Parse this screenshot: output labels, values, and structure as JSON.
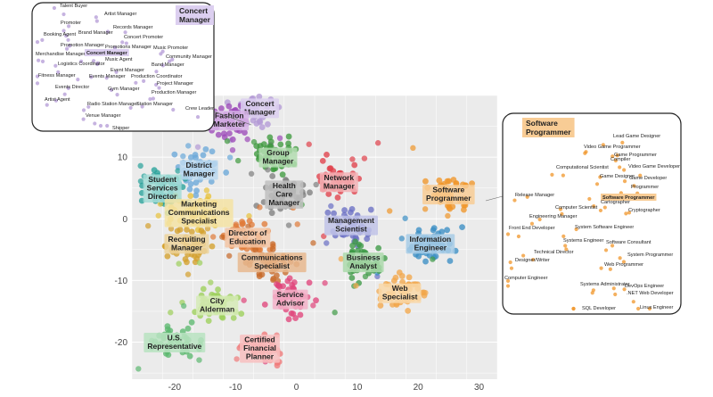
{
  "chart_data": {
    "type": "scatter",
    "title": "",
    "xlabel": "",
    "ylabel": "",
    "xlim": [
      -27,
      33
    ],
    "ylim": [
      -26,
      20
    ],
    "xticks": [
      -20,
      -10,
      0,
      10,
      20,
      30
    ],
    "yticks": [
      -20,
      -10,
      0,
      10
    ],
    "grid": true,
    "clusters": [
      {
        "name": "Concert\nManager",
        "x": -6,
        "y": 18,
        "color": "#b39ad6",
        "label_bg": "#dccff0"
      },
      {
        "name": "Fashion\nMarketer",
        "x": -11,
        "y": 16,
        "color": "#9c4ab8",
        "label_bg": "#d7b4e6"
      },
      {
        "name": "District\nManager",
        "x": -16,
        "y": 8,
        "color": "#6aa8d8",
        "label_bg": "#bcd8ee"
      },
      {
        "name": "Group\nManager",
        "x": -3,
        "y": 10,
        "color": "#3f9a3f",
        "label_bg": "#b3dcb0"
      },
      {
        "name": "Student\nServices\nDirector",
        "x": -22,
        "y": 5,
        "color": "#26a19a",
        "label_bg": "#a5dcd6"
      },
      {
        "name": "Health\nCare\nManager",
        "x": -2,
        "y": 4,
        "color": "#7f7f7f",
        "label_bg": "#bfbfbf"
      },
      {
        "name": "Network\nManager",
        "x": 7,
        "y": 6,
        "color": "#e0404a",
        "label_bg": "#f3b3b6"
      },
      {
        "name": "Software\nProgrammer",
        "x": 25,
        "y": 4,
        "color": "#f0962a",
        "label_bg": "#f8cc95"
      },
      {
        "name": "Marketing\nCommunications\nSpecialist",
        "x": -16,
        "y": 1,
        "color": "#e8c23a",
        "label_bg": "#f5e3a3"
      },
      {
        "name": "Management\nScientist",
        "x": 9,
        "y": -1,
        "color": "#6a6fc4",
        "label_bg": "#c1c3e8"
      },
      {
        "name": "Director of\nEducation",
        "x": -8,
        "y": -3,
        "color": "#e07b39",
        "label_bg": "#f3c6a4"
      },
      {
        "name": "Recruiting\nManager",
        "x": -18,
        "y": -4,
        "color": "#d4a02c",
        "label_bg": "#ecd39c"
      },
      {
        "name": "Communications\nSpecialist",
        "x": -4,
        "y": -7,
        "color": "#c86a2a",
        "label_bg": "#e8b98f"
      },
      {
        "name": "Information\nEngineer",
        "x": 22,
        "y": -4,
        "color": "#3b8ec4",
        "label_bg": "#a8cde6"
      },
      {
        "name": "Business\nAnalyst",
        "x": 11,
        "y": -7,
        "color": "#3e9a46",
        "label_bg": "#acd9ab"
      },
      {
        "name": "Web\nSpecialist",
        "x": 17,
        "y": -12,
        "color": "#f2a64a",
        "label_bg": "#f9d8a8"
      },
      {
        "name": "Service\nAdvisor",
        "x": -1,
        "y": -13,
        "color": "#e0457b",
        "label_bg": "#f3b3c9"
      },
      {
        "name": "City\nAlderman",
        "x": -13,
        "y": -14,
        "color": "#9ccf5a",
        "label_bg": "#d6ebb6"
      },
      {
        "name": "U.S.\nRepresentative",
        "x": -20,
        "y": -20,
        "color": "#5cb870",
        "label_bg": "#b9e3c1"
      },
      {
        "name": "Certified\nFinancial\nPlanner",
        "x": -6,
        "y": -21,
        "color": "#f07a7a",
        "label_bg": "#f8c0c0"
      }
    ],
    "insets": [
      {
        "title": "Concert\nManager",
        "highlight": "Concert Manager",
        "labels": [
          "Talent Buyer",
          "Artist Manager",
          "Promoter",
          "Records Manager",
          "Booking Agent",
          "Brand Manager",
          "Concert Promoter",
          "Promotion Manager",
          "Promotions Manager",
          "Music Promoter",
          "Merchandise Manager",
          "Concert Manager",
          "Community Manager",
          "Music Agent",
          "Logistics Coordinator",
          "Band Manager",
          "Event Manager",
          "Fitness Manager",
          "Events Manager",
          "Production Coordinator",
          "Project Manager",
          "Events Director",
          "Gym Manager",
          "Production Manager",
          "Artist Agent",
          "Radio Station Manager",
          "Station Manager",
          "Crew Leader",
          "Venue Manager",
          "Shipper"
        ]
      },
      {
        "title": "Software\nProgrammer",
        "highlight": "Software Programmer",
        "labels": [
          "Lead Game Designer",
          "Video Game Programmer",
          "Game Programmer",
          "Compiler",
          "Computational Scientist",
          "Video Game Developer",
          "Game Designer",
          "Game Developer",
          "Programmer",
          "Release Manager",
          "Software Programmer",
          "Cartographer",
          "Computer Scientist",
          "Cryptographer",
          "Engineering Manager",
          "Front End Developer",
          "System Software Engineer",
          "Systems Engineer",
          "Software Consultant",
          "Technical Director",
          "System Programmer",
          "Designer/Writer",
          "Web Programmer",
          "Computer Engineer",
          "Systems Administrator",
          "DevOps Engineer",
          ".NET Web Developer",
          "SQL Developer",
          "Linux Engineer"
        ]
      }
    ]
  }
}
